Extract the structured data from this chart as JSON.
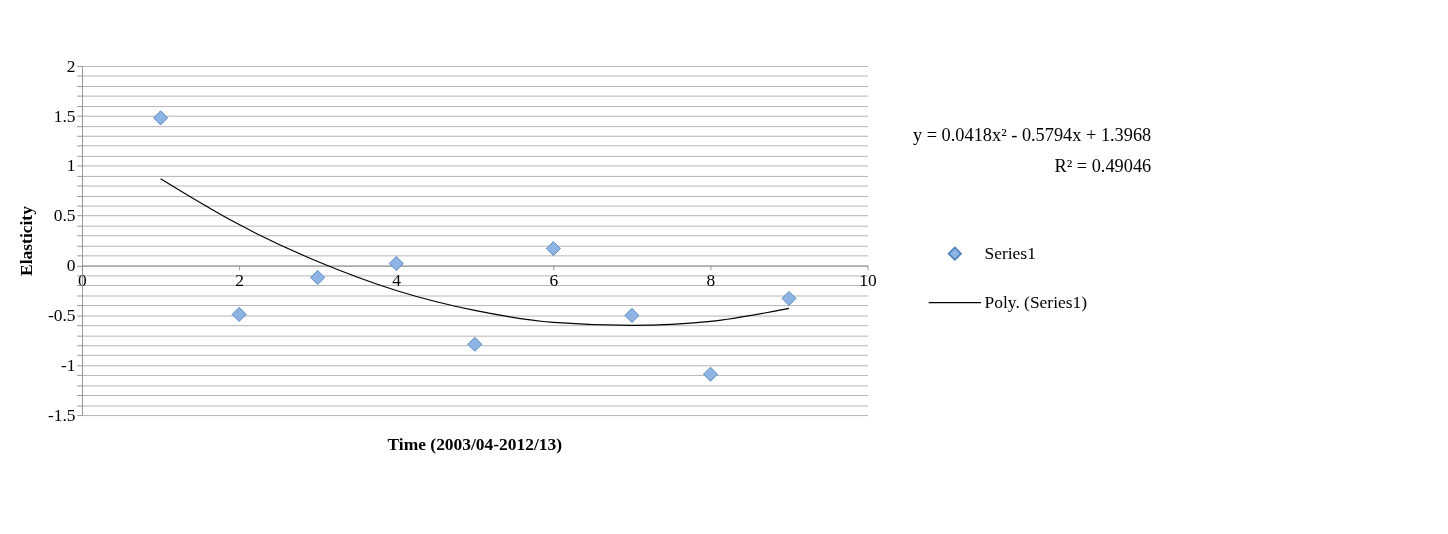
{
  "chart_data": {
    "type": "scatter",
    "xlabel": "Time (2003/04-2012/13)",
    "ylabel": "Elasticity",
    "xlim": [
      0,
      10
    ],
    "xticks": [
      0,
      2,
      4,
      6,
      8,
      10
    ],
    "ylim": [
      -1.5,
      2
    ],
    "yticks": [
      -1.5,
      {
        "value": -1.4,
        "label": null
      },
      {
        "value": -1.3,
        "label": null
      },
      {
        "value": -1.2,
        "label": null
      },
      {
        "value": -1.1,
        "label": null
      },
      -1,
      {
        "value": -0.9,
        "label": null
      },
      {
        "value": -0.8,
        "label": null
      },
      {
        "value": -0.7,
        "label": null
      },
      {
        "value": -0.6,
        "label": null
      },
      -0.5,
      {
        "value": -0.4,
        "label": null
      },
      {
        "value": -0.3,
        "label": null
      },
      {
        "value": -0.2,
        "label": null
      },
      {
        "value": -0.1,
        "label": null
      },
      0,
      {
        "value": 0.1,
        "label": null
      },
      {
        "value": 0.2,
        "label": null
      },
      {
        "value": 0.3,
        "label": null
      },
      {
        "value": 0.4,
        "label": null
      },
      0.5,
      {
        "value": 0.6,
        "label": null
      },
      {
        "value": 0.7,
        "label": null
      },
      {
        "value": 0.8,
        "label": null
      },
      {
        "value": 0.9,
        "label": null
      },
      1,
      {
        "value": 1.1,
        "label": null
      },
      {
        "value": 1.2,
        "label": null
      },
      {
        "value": 1.3,
        "label": null
      },
      {
        "value": 1.4,
        "label": null
      },
      1.5,
      {
        "value": 1.6,
        "label": null
      },
      {
        "value": 1.7,
        "label": null
      },
      {
        "value": 1.8,
        "label": null
      },
      {
        "value": 1.9,
        "label": null
      },
      2
    ],
    "grid": "y",
    "legend": "right",
    "series": [
      {
        "name": "Series1",
        "marker": "diamond",
        "color": "#8db4e2",
        "x": [
          1,
          2,
          3,
          4,
          5,
          6,
          7,
          8,
          9
        ],
        "values": [
          1.48,
          -0.49,
          -0.12,
          0.02,
          -0.79,
          0.17,
          -0.5,
          -1.09,
          -0.33
        ]
      },
      {
        "name": "Poly. (Series1)",
        "type": "line",
        "marker": "none",
        "line_style": "solid",
        "color": "#000000",
        "x": [
          1,
          2,
          3,
          4,
          5,
          6,
          7,
          8,
          9
        ],
        "values": [
          0.87,
          0.41,
          0.04,
          -0.25,
          -0.45,
          -0.57,
          -0.6,
          -0.56,
          -0.43
        ]
      }
    ],
    "annotations": [
      "y = 0.0418x² - 0.5794x + 1.3968",
      "R² = 0.49046"
    ]
  }
}
